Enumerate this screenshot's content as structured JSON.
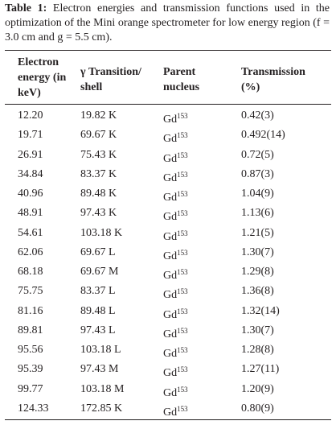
{
  "caption": {
    "label": "Table 1:",
    "text": "Electron energies and transmission functions used in the optimization of the Mini orange spectrometer for low energy region (f = 3.0 cm and g = 5.5 cm)."
  },
  "table": {
    "headers": [
      "Electron energy (in keV)",
      "γ Transition/ shell",
      "Parent nucleus",
      "Transmission (%)"
    ],
    "rows": [
      [
        "12.20",
        "19.82 K",
        {
          "element": "Gd",
          "mass": "153"
        },
        "0.42(3)"
      ],
      [
        "19.71",
        "69.67 K",
        {
          "element": "Gd",
          "mass": "153"
        },
        "0.492(14)"
      ],
      [
        "26.91",
        "75.43 K",
        {
          "element": "Gd",
          "mass": "153"
        },
        "0.72(5)"
      ],
      [
        "34.84",
        "83.37 K",
        {
          "element": "Gd",
          "mass": "153"
        },
        "0.87(3)"
      ],
      [
        "40.96",
        "89.48 K",
        {
          "element": "Gd",
          "mass": "153"
        },
        "1.04(9)"
      ],
      [
        "48.91",
        "97.43 K",
        {
          "element": "Gd",
          "mass": "153"
        },
        "1.13(6)"
      ],
      [
        "54.61",
        "103.18 K",
        {
          "element": "Gd",
          "mass": "153"
        },
        "1.21(5)"
      ],
      [
        "62.06",
        "69.67 L",
        {
          "element": "Gd",
          "mass": "153"
        },
        "1.30(7)"
      ],
      [
        "68.18",
        "69.67 M",
        {
          "element": "Gd",
          "mass": "153"
        },
        "1.29(8)"
      ],
      [
        "75.75",
        "83.37 L",
        {
          "element": "Gd",
          "mass": "153"
        },
        "1.36(8)"
      ],
      [
        "81.16",
        "89.48 L",
        {
          "element": "Gd",
          "mass": "153"
        },
        "1.32(14)"
      ],
      [
        "89.81",
        "97.43 L",
        {
          "element": "Gd",
          "mass": "153"
        },
        "1.30(7)"
      ],
      [
        "95.56",
        "103.18 L",
        {
          "element": "Gd",
          "mass": "153"
        },
        "1.28(8)"
      ],
      [
        "95.39",
        "97.43 M",
        {
          "element": "Gd",
          "mass": "153"
        },
        "1.27(11)"
      ],
      [
        "99.77",
        "103.18 M",
        {
          "element": "Gd",
          "mass": "153"
        },
        "1.20(9)"
      ],
      [
        "124.33",
        "172.85 K",
        {
          "element": "Gd",
          "mass": "153"
        },
        "0.80(9)"
      ]
    ]
  }
}
